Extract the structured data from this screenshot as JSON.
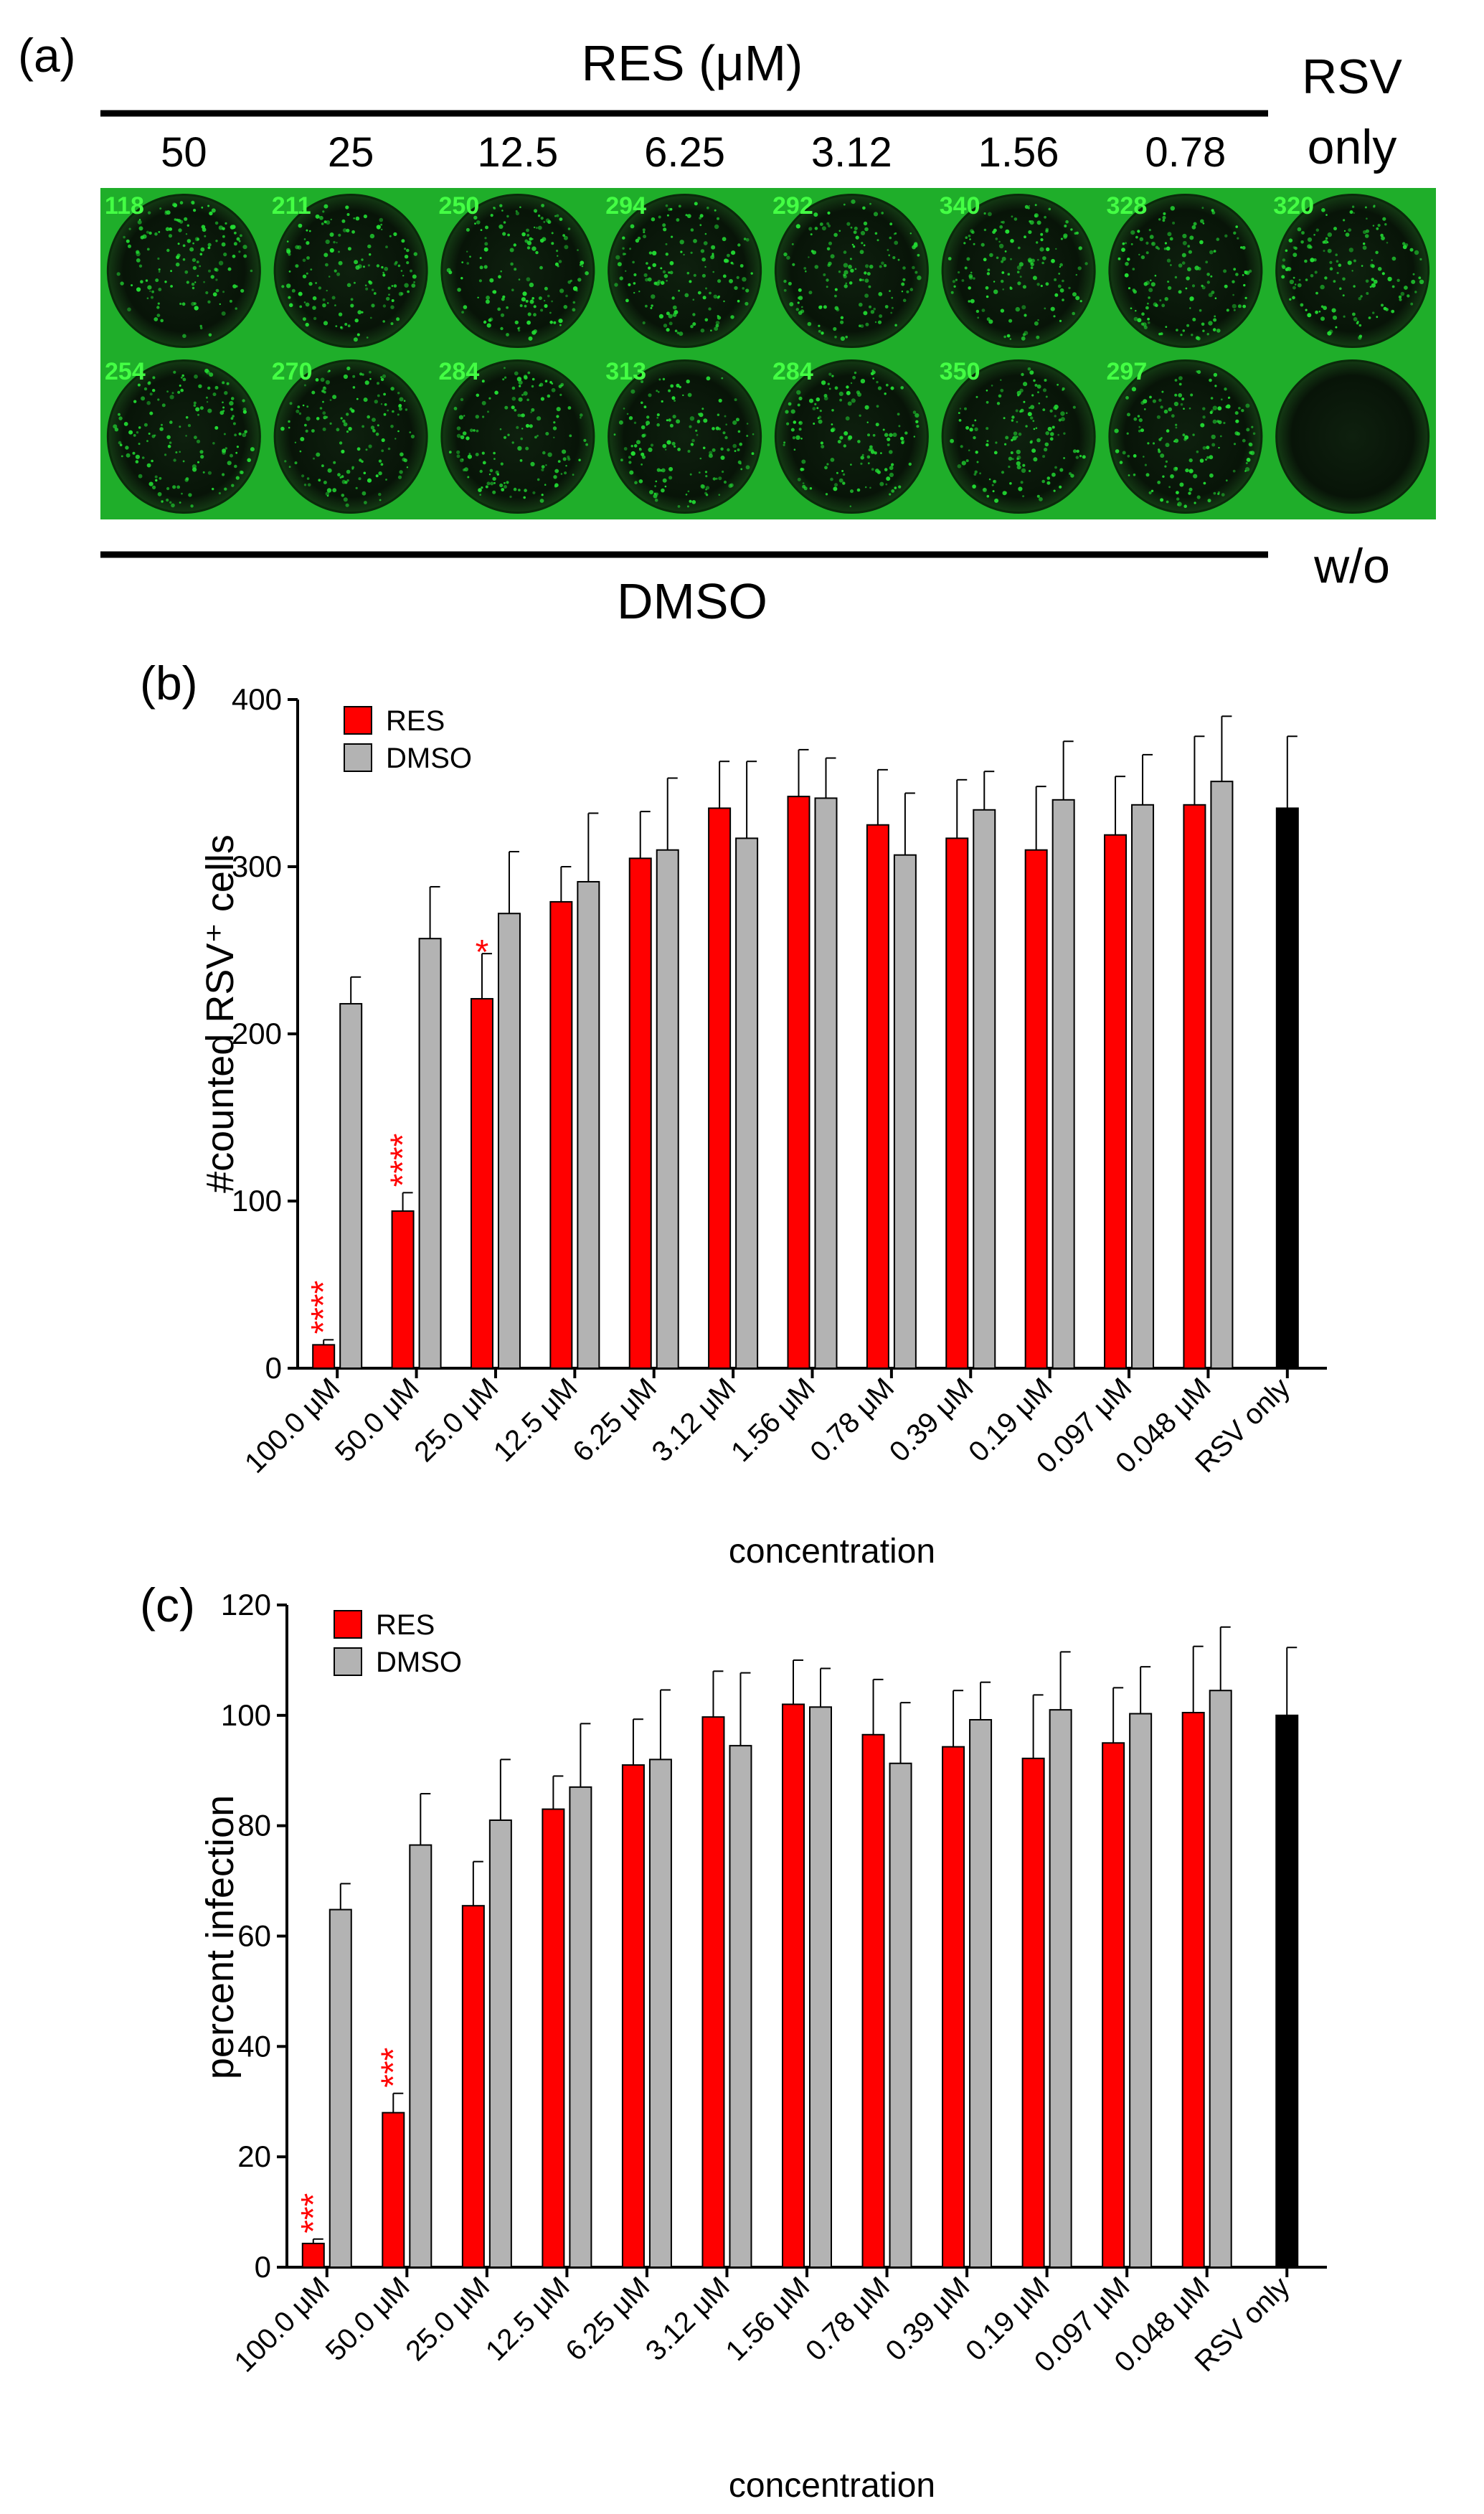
{
  "panel_a": {
    "panel_label": "(a)",
    "top_title": "RES (μM)",
    "bottom_title": "DMSO",
    "right_top_label_1": "RSV",
    "right_top_label_2": "only",
    "right_bottom_label": "w/o",
    "concentrations": [
      "50",
      "25",
      "12.5",
      "6.25",
      "3.12",
      "1.56",
      "0.78"
    ],
    "res_counts": [
      "118",
      "211",
      "250",
      "294",
      "292",
      "340",
      "328",
      "320"
    ],
    "dmso_counts": [
      "254",
      "270",
      "284",
      "313",
      "284",
      "350",
      "297",
      ""
    ],
    "colors": {
      "fluorescence": "#22dd33",
      "well_bg": "#0a1a0a",
      "plate": "#1fae2a",
      "count_text": "#44ff44"
    }
  },
  "chart_data": [
    {
      "type": "bar",
      "panel_label": "(b)",
      "title": "",
      "xlabel": "concentration",
      "ylabel": "#counted RSV⁺ cells",
      "ylim": [
        0,
        400
      ],
      "yticks": [
        "0",
        "100",
        "200",
        "300",
        "400"
      ],
      "categories": [
        "100.0 μM",
        "50.0 μM",
        "25.0 μM",
        "12.5 μM",
        "6.25 μM",
        "3.12 μM",
        "1.56 μM",
        "0.78 μM",
        "0.39 μM",
        "0.19 μM",
        "0.097 μM",
        "0.048 μM",
        "RSV only"
      ],
      "legend_position": "top-left",
      "series": [
        {
          "name": "RES",
          "color": "#ff0000",
          "values": [
            14,
            94,
            221,
            279,
            305,
            335,
            342,
            325,
            317,
            310,
            319,
            337,
            null
          ],
          "errors": [
            3,
            11,
            27,
            21,
            28,
            28,
            28,
            33,
            35,
            38,
            35,
            41,
            null
          ]
        },
        {
          "name": "DMSO",
          "color": "#b3b3b3",
          "values": [
            218,
            257,
            272,
            291,
            310,
            317,
            341,
            307,
            334,
            340,
            337,
            351,
            null
          ],
          "errors": [
            16,
            31,
            37,
            41,
            43,
            46,
            24,
            37,
            23,
            35,
            30,
            39,
            null
          ]
        },
        {
          "name": "RSV only",
          "color": "#000000",
          "values": [
            null,
            null,
            null,
            null,
            null,
            null,
            null,
            null,
            null,
            null,
            null,
            null,
            335
          ],
          "errors": [
            null,
            null,
            null,
            null,
            null,
            null,
            null,
            null,
            null,
            null,
            null,
            null,
            43
          ]
        }
      ],
      "significance": [
        {
          "category_index": 0,
          "label": "****"
        },
        {
          "category_index": 1,
          "label": "****"
        },
        {
          "category_index": 2,
          "label": "*"
        }
      ]
    },
    {
      "type": "bar",
      "panel_label": "(c)",
      "title": "",
      "xlabel": "concentration",
      "ylabel": "percent infection",
      "ylim": [
        0,
        120
      ],
      "yticks": [
        "0",
        "20",
        "40",
        "60",
        "80",
        "100",
        "120"
      ],
      "categories": [
        "100.0 μM",
        "50.0 μM",
        "25.0 μM",
        "12.5 μM",
        "6.25 μM",
        "3.12 μM",
        "1.56 μM",
        "0.78 μM",
        "0.39 μM",
        "0.19 μM",
        "0.097 μM",
        "0.048 μM",
        "RSV only"
      ],
      "legend_position": "top-left",
      "series": [
        {
          "name": "RES",
          "color": "#ff0000",
          "values": [
            4.3,
            28,
            65.5,
            83,
            91,
            99.7,
            102,
            96.5,
            94.3,
            92.2,
            95,
            100.5,
            null
          ],
          "errors": [
            0.8,
            3.5,
            8,
            6,
            8.3,
            8.3,
            8,
            10,
            10.2,
            11.5,
            10,
            12,
            null
          ]
        },
        {
          "name": "DMSO",
          "color": "#b3b3b3",
          "values": [
            64.8,
            76.5,
            81,
            87,
            92,
            94.5,
            101.5,
            91.3,
            99.2,
            101,
            100.3,
            104.5,
            null
          ],
          "errors": [
            4.7,
            9.3,
            11,
            11.5,
            12.6,
            13.2,
            7,
            11,
            6.8,
            10.5,
            8.5,
            11.5,
            null
          ]
        },
        {
          "name": "RSV only",
          "color": "#000000",
          "values": [
            null,
            null,
            null,
            null,
            null,
            null,
            null,
            null,
            null,
            null,
            null,
            null,
            100
          ],
          "errors": [
            null,
            null,
            null,
            null,
            null,
            null,
            null,
            null,
            null,
            null,
            null,
            null,
            12.3
          ]
        }
      ],
      "significance": [
        {
          "category_index": 0,
          "label": "***"
        },
        {
          "category_index": 1,
          "label": "***"
        }
      ]
    }
  ]
}
